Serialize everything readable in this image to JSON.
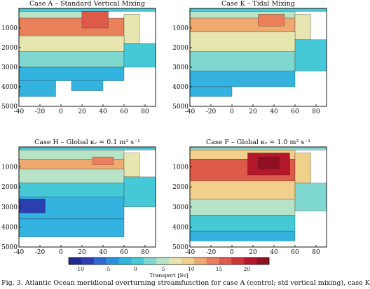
{
  "caption": "Fig. 3. Atlantic Ocean meridional overturning streamfunction for case A (control; std vertical mixing), case K",
  "colorbar": {
    "label": "Transport [Sv]",
    "ticks": [
      "-10",
      "-5",
      "0",
      "5",
      "10",
      "15",
      "20"
    ],
    "range": [
      -12,
      24
    ],
    "colors": [
      "#1e2a8c",
      "#2b3fb0",
      "#2f6ad0",
      "#2e90dc",
      "#35b3e0",
      "#46c9d6",
      "#7fd8cf",
      "#b8e3c6",
      "#e8e6b0",
      "#f1d08c",
      "#f0aa70",
      "#e9805a",
      "#de5a48",
      "#cc3536",
      "#b3182a",
      "#8f1020"
    ]
  },
  "axes": {
    "x_ticks": [
      "-40",
      "-20",
      "0",
      "20",
      "40",
      "60",
      "80"
    ],
    "y_ticks": [
      "1000",
      "2000",
      "3000",
      "4000",
      "5000"
    ],
    "y_zero": "0"
  },
  "chart_data": [
    {
      "type": "heatmap",
      "title": "Case A – Standard Vertical Mixing",
      "xlim": [
        -40,
        90
      ],
      "ylim": [
        5000,
        0
      ],
      "cells": [
        {
          "x": [
            -40,
            90
          ],
          "y": [
            0,
            150
          ],
          "v": 1
        },
        {
          "x": [
            -40,
            20
          ],
          "y": [
            150,
            500
          ],
          "v": 4
        },
        {
          "x": [
            -40,
            60
          ],
          "y": [
            500,
            1400
          ],
          "v": 13
        },
        {
          "x": [
            20,
            45
          ],
          "y": [
            150,
            1000
          ],
          "v": 17
        },
        {
          "x": [
            60,
            75
          ],
          "y": [
            300,
            1800
          ],
          "v": 8
        },
        {
          "x": [
            -40,
            60
          ],
          "y": [
            1400,
            2200
          ],
          "v": 6
        },
        {
          "x": [
            -40,
            60
          ],
          "y": [
            2200,
            3000
          ],
          "v": 2
        },
        {
          "x": [
            -40,
            60
          ],
          "y": [
            3000,
            3700
          ],
          "v": -1
        },
        {
          "x": [
            -40,
            -5
          ],
          "y": [
            3700,
            4500
          ],
          "v": -3
        },
        {
          "x": [
            10,
            40
          ],
          "y": [
            3700,
            4200
          ],
          "v": -2
        },
        {
          "x": [
            60,
            90
          ],
          "y": [
            1800,
            3000
          ],
          "v": 1
        }
      ]
    },
    {
      "type": "heatmap",
      "title": "Case K – Tidal Mixing",
      "xlim": [
        -40,
        90
      ],
      "ylim": [
        5000,
        0
      ],
      "cells": [
        {
          "x": [
            -40,
            90
          ],
          "y": [
            0,
            150
          ],
          "v": 1
        },
        {
          "x": [
            -40,
            60
          ],
          "y": [
            150,
            500
          ],
          "v": 4
        },
        {
          "x": [
            -40,
            60
          ],
          "y": [
            500,
            1200
          ],
          "v": 11
        },
        {
          "x": [
            25,
            50
          ],
          "y": [
            300,
            900
          ],
          "v": 14
        },
        {
          "x": [
            60,
            75
          ],
          "y": [
            300,
            1600
          ],
          "v": 7
        },
        {
          "x": [
            -40,
            60
          ],
          "y": [
            1200,
            2200
          ],
          "v": 6
        },
        {
          "x": [
            -40,
            60
          ],
          "y": [
            2200,
            3200
          ],
          "v": 2
        },
        {
          "x": [
            -40,
            60
          ],
          "y": [
            3200,
            4000
          ],
          "v": -1
        },
        {
          "x": [
            -40,
            0
          ],
          "y": [
            4000,
            4500
          ],
          "v": -2
        },
        {
          "x": [
            60,
            90
          ],
          "y": [
            1600,
            3200
          ],
          "v": 1
        }
      ]
    },
    {
      "type": "heatmap",
      "title": "Case H – Global κᵥ = 0.1 m² s⁻¹",
      "xlim": [
        -40,
        90
      ],
      "ylim": [
        5000,
        0
      ],
      "cells": [
        {
          "x": [
            -40,
            90
          ],
          "y": [
            0,
            150
          ],
          "v": 1
        },
        {
          "x": [
            -40,
            60
          ],
          "y": [
            150,
            600
          ],
          "v": 4
        },
        {
          "x": [
            -40,
            60
          ],
          "y": [
            600,
            1100
          ],
          "v": 11
        },
        {
          "x": [
            30,
            50
          ],
          "y": [
            500,
            900
          ],
          "v": 13
        },
        {
          "x": [
            60,
            75
          ],
          "y": [
            300,
            1500
          ],
          "v": 7
        },
        {
          "x": [
            -40,
            60
          ],
          "y": [
            1100,
            1800
          ],
          "v": 5
        },
        {
          "x": [
            -40,
            60
          ],
          "y": [
            1800,
            2500
          ],
          "v": 0
        },
        {
          "x": [
            -40,
            60
          ],
          "y": [
            2500,
            3600
          ],
          "v": -3
        },
        {
          "x": [
            -40,
            -15
          ],
          "y": [
            2600,
            3300
          ],
          "v": -8
        },
        {
          "x": [
            -40,
            60
          ],
          "y": [
            3600,
            4500
          ],
          "v": -2
        },
        {
          "x": [
            60,
            90
          ],
          "y": [
            1500,
            3000
          ],
          "v": 1
        }
      ]
    },
    {
      "type": "heatmap",
      "title": "Case F – Global κᵥ = 1.0 m² s⁻¹",
      "xlim": [
        -40,
        90
      ],
      "ylim": [
        5000,
        0
      ],
      "cells": [
        {
          "x": [
            -40,
            90
          ],
          "y": [
            0,
            150
          ],
          "v": 2
        },
        {
          "x": [
            -40,
            60
          ],
          "y": [
            150,
            600
          ],
          "v": 10
        },
        {
          "x": [
            -40,
            60
          ],
          "y": [
            600,
            1700
          ],
          "v": 16
        },
        {
          "x": [
            15,
            55
          ],
          "y": [
            300,
            1400
          ],
          "v": 20
        },
        {
          "x": [
            25,
            45
          ],
          "y": [
            500,
            1100
          ],
          "v": 23
        },
        {
          "x": [
            60,
            75
          ],
          "y": [
            300,
            1800
          ],
          "v": 9
        },
        {
          "x": [
            -40,
            60
          ],
          "y": [
            1700,
            2600
          ],
          "v": 10
        },
        {
          "x": [
            -40,
            60
          ],
          "y": [
            2600,
            3400
          ],
          "v": 5
        },
        {
          "x": [
            -40,
            60
          ],
          "y": [
            3400,
            4200
          ],
          "v": 1
        },
        {
          "x": [
            -40,
            60
          ],
          "y": [
            4200,
            4700
          ],
          "v": -1
        },
        {
          "x": [
            60,
            90
          ],
          "y": [
            1800,
            3200
          ],
          "v": 2
        }
      ]
    }
  ]
}
